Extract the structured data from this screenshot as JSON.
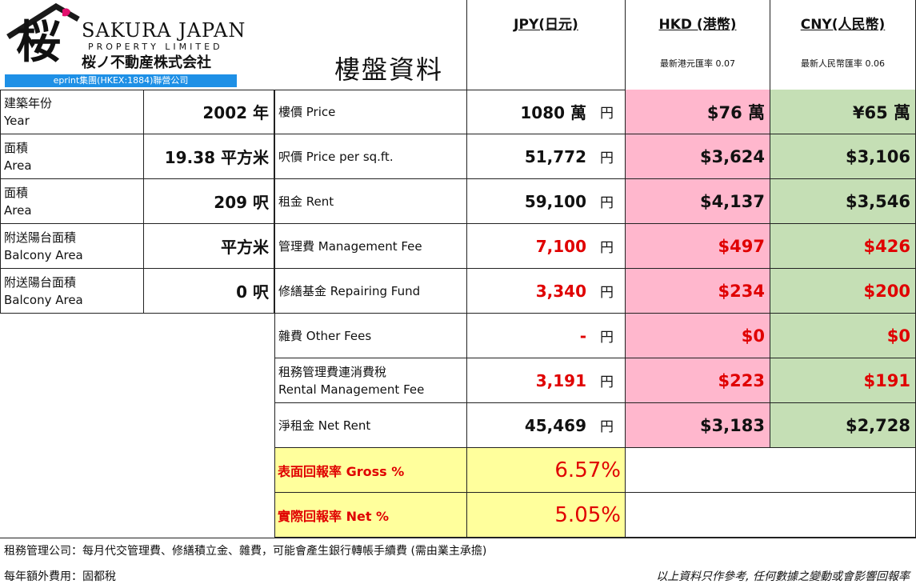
{
  "logo": {
    "kanji": "桜",
    "en_name": "SAKURA JAPAN",
    "en_sub": "PROPERTY LIMITED",
    "jp_name": "桜ノ不動産株式会社",
    "bar": "eprint集團(HKEX:1884)聯營公司"
  },
  "title": "樓盤資料",
  "headers": {
    "jpy": "JPY(日元)",
    "hkd": "HKD (港幣)",
    "hkd_rate": "最新港元匯率 0.07",
    "cny": "CNY(人民幣)",
    "cny_rate": "最新人民幣匯率 0.06"
  },
  "left_rows": [
    {
      "zh": "建築年份",
      "en": "Year",
      "value": "2002 年"
    },
    {
      "zh": "面積",
      "en": "Area",
      "value": "19.38 平方米"
    },
    {
      "zh": "面積",
      "en": "Area",
      "value": "209 呎"
    },
    {
      "zh": "附送陽台面積",
      "en": "Balcony Area",
      "value": "平方米"
    },
    {
      "zh": "附送陽台面積",
      "en": "Balcony Area",
      "value": "0 呎"
    }
  ],
  "yen_unit": "円",
  "fin_rows": [
    {
      "label": "樓價 Price",
      "label2": "",
      "jpy": "1080 萬",
      "hkd": "$76 萬",
      "cny": "¥65 萬"
    },
    {
      "label": "呎價 Price per sq.ft.",
      "label2": "",
      "jpy": "51,772",
      "hkd": "$3,624",
      "cny": "$3,106"
    },
    {
      "label": "租金 Rent",
      "label2": "",
      "jpy": "59,100",
      "hkd": "$4,137",
      "cny": "$3,546"
    },
    {
      "label": "管理費 Management Fee",
      "label2": "",
      "jpy": "7,100",
      "hkd": "$497",
      "cny": "$426"
    },
    {
      "label": "修繕基金 Repairing Fund",
      "label2": "",
      "jpy": "3,340",
      "hkd": "$234",
      "cny": "$200"
    },
    {
      "label": "雜費 Other Fees",
      "label2": "",
      "jpy": "-",
      "hkd": "$0",
      "cny": "$0"
    },
    {
      "label": "租務管理費連消費稅",
      "label2": "Rental Management Fee",
      "jpy": "3,191",
      "hkd": "$223",
      "cny": "$191"
    },
    {
      "label": "淨租金 Net Rent",
      "label2": "",
      "jpy": "45,469",
      "hkd": "$3,183",
      "cny": "$2,728"
    }
  ],
  "yield_rows": [
    {
      "label": "表面回報率 Gross %",
      "value": "6.57%"
    },
    {
      "label": "實際回報率 Net %",
      "value": "5.05%"
    }
  ],
  "colors": {
    "hkd_bg": "#ffb7cd",
    "cny_bg": "#c5dfb5",
    "yield_bg": "#ffff9c",
    "red": "#e00000",
    "logo_bar": "#1e90e6"
  },
  "footer": {
    "line1": "租務管理公司：每月代交管理費、修繕積立金、雜費，可能會產生銀行轉帳手續費 (需由業主承擔)",
    "line2": "每年額外費用：固都稅",
    "disclaimer": "以上資料只作參考, 任何數據之變動或會影響回報率"
  }
}
